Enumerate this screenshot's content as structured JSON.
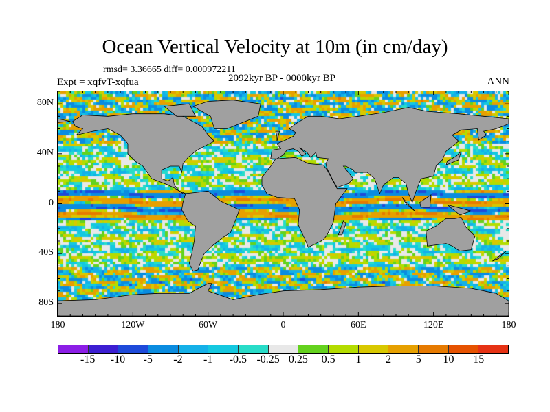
{
  "title": "Ocean Vertical Velocity at 10m (in cm/day)",
  "rmsd_line": "rmsd= 3.36665 diff= 0.000972211",
  "experiment": "Expt = xqfvT-xqfua",
  "period": "2092kyr BP - 0000kyr BP",
  "season": "ANN",
  "map": {
    "land_color": "#a0a0a0",
    "lat_labels": [
      "80N",
      "40N",
      "0",
      "40S",
      "80S"
    ],
    "lat_values": [
      80,
      40,
      0,
      -40,
      -80
    ],
    "lon_labels": [
      "180",
      "120W",
      "60W",
      "0",
      "60E",
      "120E",
      "180"
    ],
    "lon_values": [
      -180,
      -120,
      -60,
      0,
      60,
      120,
      180
    ]
  },
  "colorbar": {
    "levels": [
      "-15",
      "-10",
      "-5",
      "-2",
      "-1",
      "-0.5",
      "-0.25",
      "0.25",
      "0.5",
      "1",
      "2",
      "5",
      "10",
      "15"
    ],
    "colors": [
      "#8c1ee6",
      "#3c1ed2",
      "#1e4ada",
      "#0a8ce0",
      "#14b0e8",
      "#14c8e0",
      "#28dcc8",
      "#e8e8e8",
      "#64d21e",
      "#b4dc00",
      "#d8c800",
      "#e6a000",
      "#e67a00",
      "#e65200",
      "#e63214"
    ]
  }
}
